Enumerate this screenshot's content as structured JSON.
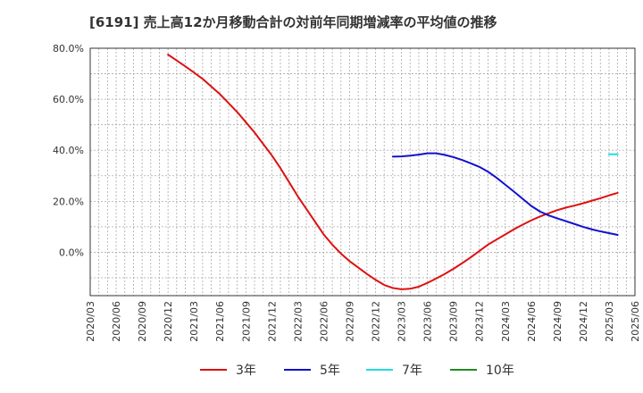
{
  "chart_data": {
    "type": "line",
    "title": "[6191]  売上高12か月移動合計の対前年同期増減率の平均値の推移",
    "xlabel": "",
    "ylabel": "",
    "ylim": [
      -17,
      80
    ],
    "y_ticks": [
      0,
      20,
      40,
      60,
      80
    ],
    "y_tick_labels": [
      "0.0%",
      "20.0%",
      "40.0%",
      "60.0%",
      "80.0%"
    ],
    "x_tick_labels": [
      "2020/03",
      "2020/06",
      "2020/09",
      "2020/12",
      "2021/03",
      "2021/06",
      "2021/09",
      "2021/12",
      "2022/03",
      "2022/06",
      "2022/09",
      "2022/12",
      "2023/03",
      "2023/06",
      "2023/09",
      "2023/12",
      "2024/03",
      "2024/06",
      "2024/09",
      "2024/12",
      "2025/03",
      "2025/06"
    ],
    "grid": true,
    "legend_position": "bottom",
    "series": [
      {
        "name": "3年",
        "color": "#dd1111",
        "points": [
          [
            "2020/12",
            77.5
          ],
          [
            "2021/01",
            75.2
          ],
          [
            "2021/02",
            72.9
          ],
          [
            "2021/03",
            70.5
          ],
          [
            "2021/04",
            68.0
          ],
          [
            "2021/05",
            65.0
          ],
          [
            "2021/06",
            62.0
          ],
          [
            "2021/07",
            58.5
          ],
          [
            "2021/08",
            55.0
          ],
          [
            "2021/09",
            51.0
          ],
          [
            "2021/10",
            47.0
          ],
          [
            "2021/11",
            42.5
          ],
          [
            "2021/12",
            38.0
          ],
          [
            "2022/01",
            33.0
          ],
          [
            "2022/02",
            27.5
          ],
          [
            "2022/03",
            22.0
          ],
          [
            "2022/04",
            17.0
          ],
          [
            "2022/05",
            12.0
          ],
          [
            "2022/06",
            7.0
          ],
          [
            "2022/07",
            3.0
          ],
          [
            "2022/08",
            -0.5
          ],
          [
            "2022/09",
            -3.5
          ],
          [
            "2022/10",
            -6.0
          ],
          [
            "2022/11",
            -8.5
          ],
          [
            "2022/12",
            -10.8
          ],
          [
            "2023/01",
            -12.8
          ],
          [
            "2023/02",
            -14.0
          ],
          [
            "2023/03",
            -14.5
          ],
          [
            "2023/04",
            -14.3
          ],
          [
            "2023/05",
            -13.5
          ],
          [
            "2023/06",
            -12.0
          ],
          [
            "2023/07",
            -10.3
          ],
          [
            "2023/08",
            -8.5
          ],
          [
            "2023/09",
            -6.5
          ],
          [
            "2023/10",
            -4.3
          ],
          [
            "2023/11",
            -2.0
          ],
          [
            "2023/12",
            0.5
          ],
          [
            "2024/01",
            3.0
          ],
          [
            "2024/02",
            5.0
          ],
          [
            "2024/03",
            7.0
          ],
          [
            "2024/04",
            9.0
          ],
          [
            "2024/05",
            10.8
          ],
          [
            "2024/06",
            12.5
          ],
          [
            "2024/07",
            14.0
          ],
          [
            "2024/08",
            15.3
          ],
          [
            "2024/09",
            16.5
          ],
          [
            "2024/10",
            17.5
          ],
          [
            "2024/11",
            18.3
          ],
          [
            "2024/12",
            19.2
          ],
          [
            "2025/01",
            20.2
          ],
          [
            "2025/02",
            21.2
          ],
          [
            "2025/03",
            22.3
          ],
          [
            "2025/04",
            23.3
          ]
        ]
      },
      {
        "name": "5年",
        "color": "#1111cc",
        "points": [
          [
            "2023/02",
            37.5
          ],
          [
            "2023/03",
            37.6
          ],
          [
            "2023/04",
            37.9
          ],
          [
            "2023/05",
            38.3
          ],
          [
            "2023/06",
            38.8
          ],
          [
            "2023/07",
            38.8
          ],
          [
            "2023/08",
            38.2
          ],
          [
            "2023/09",
            37.3
          ],
          [
            "2023/10",
            36.2
          ],
          [
            "2023/11",
            34.9
          ],
          [
            "2023/12",
            33.5
          ],
          [
            "2024/01",
            31.6
          ],
          [
            "2024/02",
            29.2
          ],
          [
            "2024/03",
            26.5
          ],
          [
            "2024/04",
            23.8
          ],
          [
            "2024/05",
            21.0
          ],
          [
            "2024/06",
            18.2
          ],
          [
            "2024/07",
            16.0
          ],
          [
            "2024/08",
            14.5
          ],
          [
            "2024/09",
            13.3
          ],
          [
            "2024/10",
            12.2
          ],
          [
            "2024/11",
            11.1
          ],
          [
            "2024/12",
            10.0
          ],
          [
            "2025/01",
            9.0
          ],
          [
            "2025/02",
            8.2
          ],
          [
            "2025/03",
            7.5
          ],
          [
            "2025/04",
            6.8
          ]
        ]
      },
      {
        "name": "7年",
        "color": "#22dddd",
        "points": [
          [
            "2025/03",
            38.4
          ],
          [
            "2025/04",
            38.4
          ]
        ]
      },
      {
        "name": "10年",
        "color": "#228822",
        "points": []
      }
    ]
  }
}
